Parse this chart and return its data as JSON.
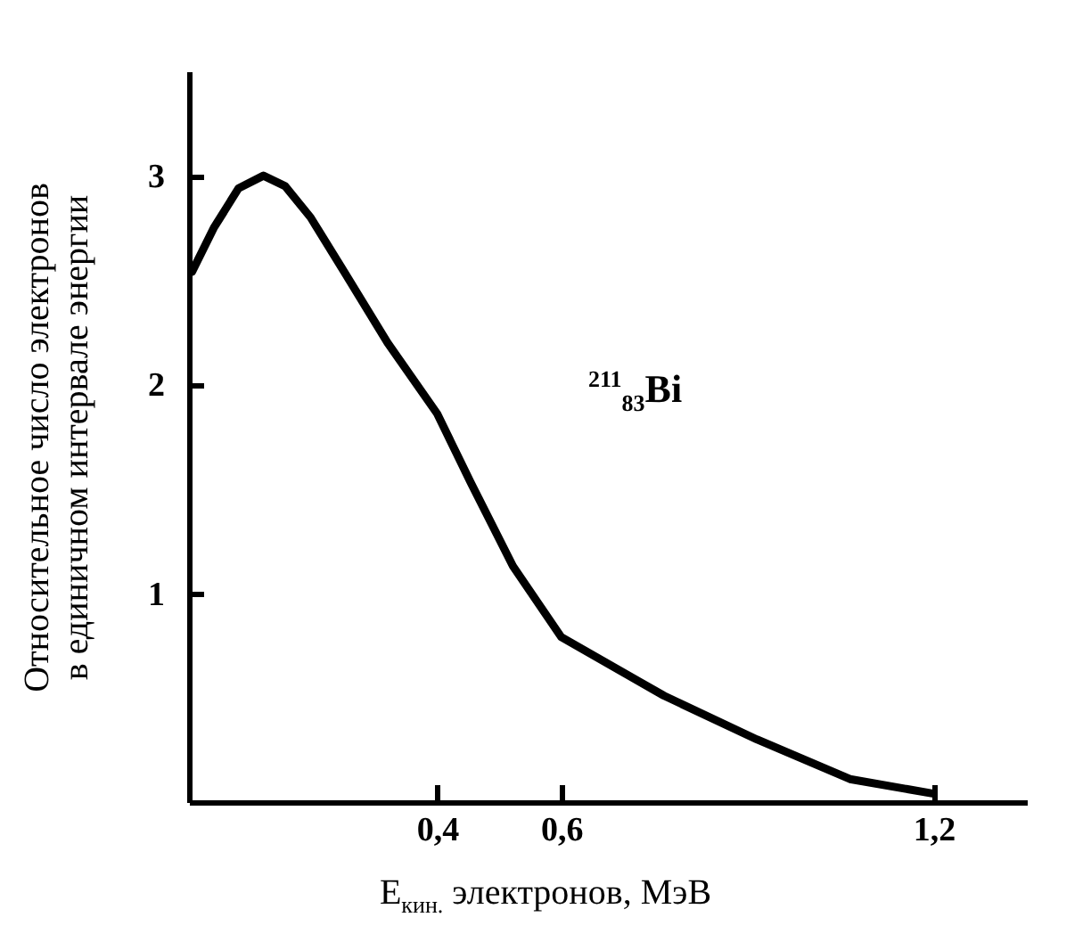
{
  "chart_data": {
    "type": "line",
    "xlabel": "E$_{кин.}$ электронов, МэВ",
    "ylabel": "Относительное число электронов\nв единичном интервале энергии",
    "annotations": [
      "$^{211}$$_{83}$Bi"
    ],
    "x": [
      0.005,
      0.04,
      0.08,
      0.12,
      0.155,
      0.196,
      0.25,
      0.32,
      0.4,
      0.454,
      0.522,
      0.6,
      0.765,
      0.915,
      1.065,
      1.2
    ],
    "series": [
      {
        "color": "#000000",
        "values": [
          2.54,
          2.75,
          2.94,
          3.0,
          2.95,
          2.8,
          2.54,
          2.2,
          1.86,
          1.53,
          1.13,
          0.79,
          0.51,
          0.3,
          0.11,
          0.04
        ]
      }
    ],
    "xlim": [
      0,
      1.35
    ],
    "ylim": [
      0,
      3.5
    ],
    "xticks": [
      {
        "value": 0.4,
        "label": "0,4"
      },
      {
        "value": 0.6,
        "label": "0,6"
      },
      {
        "value": 1.2,
        "label": "1,2"
      }
    ],
    "yticks": [
      1,
      2,
      3
    ],
    "marker": "none",
    "line_style": "solid"
  }
}
